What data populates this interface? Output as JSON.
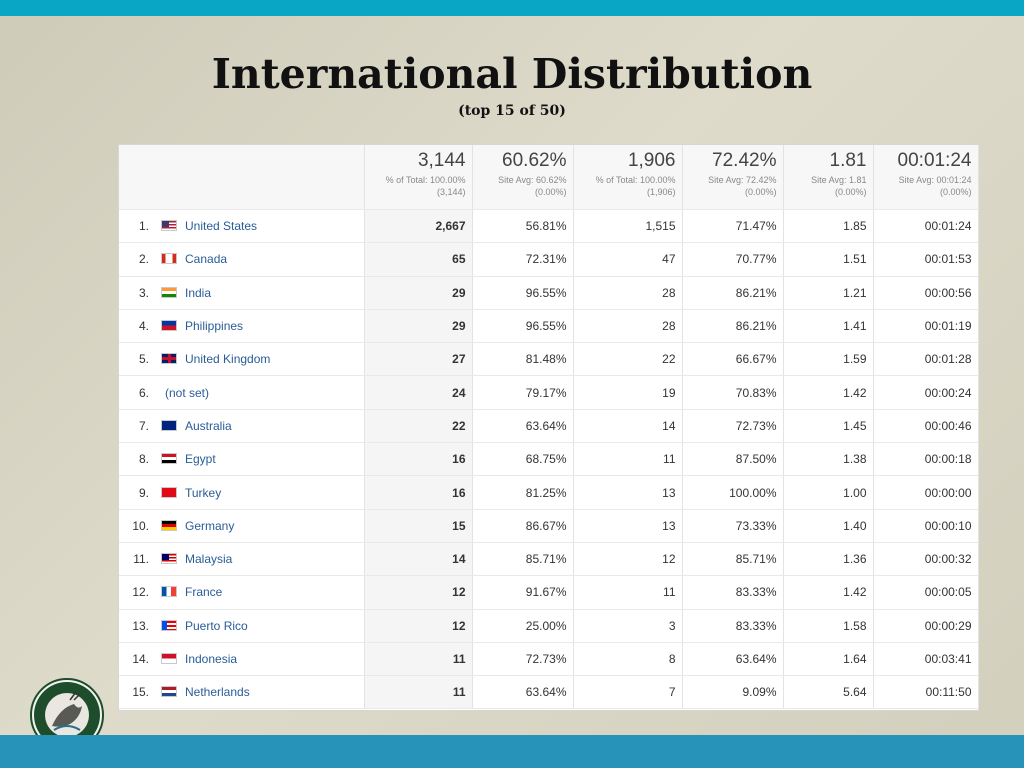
{
  "slide": {
    "title": "International Distribution",
    "subtitle": "(top 15 of 50)",
    "colors": {
      "top_bar": "#0aa6c6",
      "bottom_bar": "#2793b8",
      "link": "#2a5c96"
    }
  },
  "table": {
    "headers": [
      {
        "big": "",
        "small": ""
      },
      {
        "big": "3,144",
        "small": "% of Total: 100.00% (3,144)"
      },
      {
        "big": "60.62%",
        "small": "Site Avg: 60.62% (0.00%)"
      },
      {
        "big": "1,906",
        "small": "% of Total: 100.00% (1,906)"
      },
      {
        "big": "72.42%",
        "small": "Site Avg: 72.42% (0.00%)"
      },
      {
        "big": "1.81",
        "small": "Site Avg: 1.81 (0.00%)"
      },
      {
        "big": "00:01:24",
        "small": "Site Avg: 00:01:24 (0.00%)"
      }
    ],
    "rows": [
      {
        "rank": "1.",
        "flag": "us-flag",
        "country": "United States",
        "c1": "2,667",
        "c2": "56.81%",
        "c3": "1,515",
        "c4": "71.47%",
        "c5": "1.85",
        "c6": "00:01:24"
      },
      {
        "rank": "2.",
        "flag": "ca-flag",
        "country": "Canada",
        "c1": "65",
        "c2": "72.31%",
        "c3": "47",
        "c4": "70.77%",
        "c5": "1.51",
        "c6": "00:01:53"
      },
      {
        "rank": "3.",
        "flag": "in-flag",
        "country": "India",
        "c1": "29",
        "c2": "96.55%",
        "c3": "28",
        "c4": "86.21%",
        "c5": "1.21",
        "c6": "00:00:56"
      },
      {
        "rank": "4.",
        "flag": "ph-flag",
        "country": "Philippines",
        "c1": "29",
        "c2": "96.55%",
        "c3": "28",
        "c4": "86.21%",
        "c5": "1.41",
        "c6": "00:01:19"
      },
      {
        "rank": "5.",
        "flag": "gb-flag",
        "country": "United Kingdom",
        "c1": "27",
        "c2": "81.48%",
        "c3": "22",
        "c4": "66.67%",
        "c5": "1.59",
        "c6": "00:01:28"
      },
      {
        "rank": "6.",
        "flag": "",
        "country": "(not set)",
        "c1": "24",
        "c2": "79.17%",
        "c3": "19",
        "c4": "70.83%",
        "c5": "1.42",
        "c6": "00:00:24"
      },
      {
        "rank": "7.",
        "flag": "au-flag",
        "country": "Australia",
        "c1": "22",
        "c2": "63.64%",
        "c3": "14",
        "c4": "72.73%",
        "c5": "1.45",
        "c6": "00:00:46"
      },
      {
        "rank": "8.",
        "flag": "eg-flag",
        "country": "Egypt",
        "c1": "16",
        "c2": "68.75%",
        "c3": "11",
        "c4": "87.50%",
        "c5": "1.38",
        "c6": "00:00:18"
      },
      {
        "rank": "9.",
        "flag": "tr-flag",
        "country": "Turkey",
        "c1": "16",
        "c2": "81.25%",
        "c3": "13",
        "c4": "100.00%",
        "c5": "1.00",
        "c6": "00:00:00"
      },
      {
        "rank": "10.",
        "flag": "de-flag",
        "country": "Germany",
        "c1": "15",
        "c2": "86.67%",
        "c3": "13",
        "c4": "73.33%",
        "c5": "1.40",
        "c6": "00:00:10"
      },
      {
        "rank": "11.",
        "flag": "my-flag",
        "country": "Malaysia",
        "c1": "14",
        "c2": "85.71%",
        "c3": "12",
        "c4": "85.71%",
        "c5": "1.36",
        "c6": "00:00:32"
      },
      {
        "rank": "12.",
        "flag": "fr-flag",
        "country": "France",
        "c1": "12",
        "c2": "91.67%",
        "c3": "11",
        "c4": "83.33%",
        "c5": "1.42",
        "c6": "00:00:05"
      },
      {
        "rank": "13.",
        "flag": "pr-flag",
        "country": "Puerto Rico",
        "c1": "12",
        "c2": "25.00%",
        "c3": "3",
        "c4": "83.33%",
        "c5": "1.58",
        "c6": "00:00:29"
      },
      {
        "rank": "14.",
        "flag": "id-flag",
        "country": "Indonesia",
        "c1": "11",
        "c2": "72.73%",
        "c3": "8",
        "c4": "63.64%",
        "c5": "1.64",
        "c6": "00:03:41"
      },
      {
        "rank": "15.",
        "flag": "nl-flag",
        "country": "Netherlands",
        "c1": "11",
        "c2": "63.64%",
        "c3": "7",
        "c4": "9.09%",
        "c5": "5.64",
        "c6": "00:11:50"
      }
    ]
  },
  "logo": {
    "name": "fwc-seal-logo",
    "text": "FLORIDA FISH AND WILDLIFE CONSERVATION COMMISSION"
  }
}
